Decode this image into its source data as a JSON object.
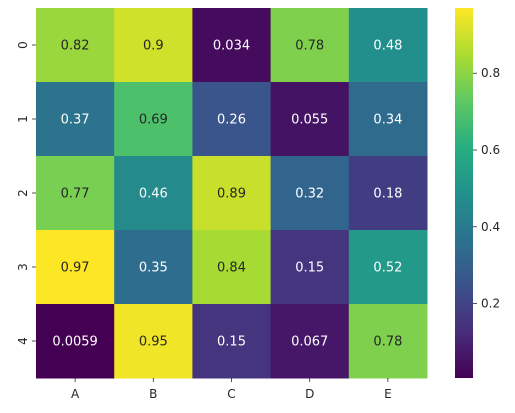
{
  "chart_data": {
    "type": "heatmap",
    "title": "",
    "xlabel": "",
    "ylabel": "",
    "x_categories": [
      "A",
      "B",
      "C",
      "D",
      "E"
    ],
    "y_categories": [
      "0",
      "1",
      "2",
      "3",
      "4"
    ],
    "values": [
      [
        0.82,
        0.9,
        0.034,
        0.78,
        0.48
      ],
      [
        0.37,
        0.69,
        0.26,
        0.055,
        0.34
      ],
      [
        0.77,
        0.46,
        0.89,
        0.32,
        0.18
      ],
      [
        0.97,
        0.35,
        0.84,
        0.15,
        0.52
      ],
      [
        0.0059,
        0.95,
        0.15,
        0.067,
        0.78
      ]
    ],
    "value_labels": [
      [
        "0.82",
        "0.9",
        "0.034",
        "0.78",
        "0.48"
      ],
      [
        "0.37",
        "0.69",
        "0.26",
        "0.055",
        "0.34"
      ],
      [
        "0.77",
        "0.46",
        "0.89",
        "0.32",
        "0.18"
      ],
      [
        "0.97",
        "0.35",
        "0.84",
        "0.15",
        "0.52"
      ],
      [
        "0.0059",
        "0.95",
        "0.15",
        "0.067",
        "0.78"
      ]
    ],
    "colormap": "viridis",
    "colorbar": {
      "range": [
        0.0059,
        0.97
      ],
      "ticks": [
        0.2,
        0.4,
        0.6,
        0.8
      ],
      "tick_labels": [
        "0.2",
        "0.4",
        "0.6",
        "0.8"
      ]
    },
    "grid": false
  }
}
